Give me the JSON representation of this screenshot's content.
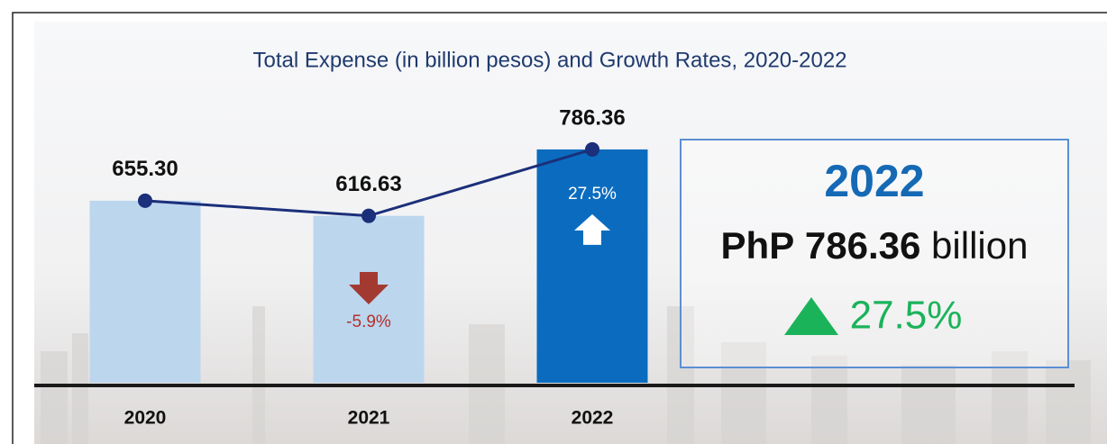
{
  "chart_data": {
    "type": "bar",
    "title": "Total Expense (in billion pesos) and Growth Rates, 2020-2022",
    "categories": [
      "2020",
      "2021",
      "2022"
    ],
    "values": [
      655.3,
      616.63,
      786.36
    ],
    "value_labels": [
      "655.30",
      "616.63",
      "786.36"
    ],
    "colors": [
      "#bcd6ee",
      "#bcd6ee",
      "#0b6cbf"
    ],
    "line_color": "#1b2f7a",
    "growth": [
      null,
      -5.9,
      27.5
    ],
    "growth_labels": [
      null,
      "-5.9%",
      "27.5%"
    ],
    "ylim": [
      190,
      800
    ]
  },
  "highlight": {
    "year": "2022",
    "currency": "PhP",
    "amount": "786.36",
    "unit": "billion",
    "growth": "27.5%"
  }
}
